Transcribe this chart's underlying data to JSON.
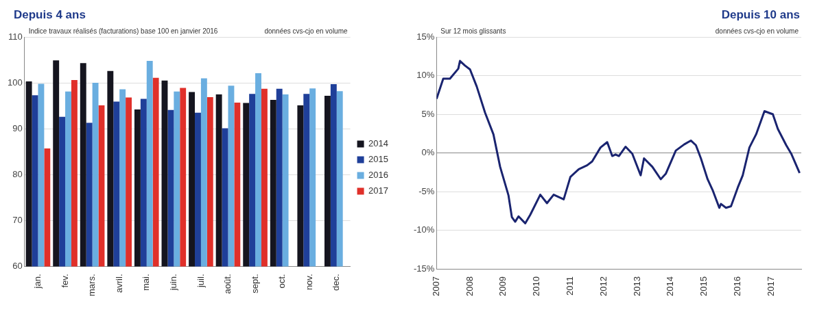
{
  "chart_data": [
    {
      "type": "bar",
      "title": "Depuis 4 ans",
      "annotations": [
        "Indice travaux réalisés (facturations) base 100 en janvier 2016",
        "données cvs-cjo en volume"
      ],
      "categories": [
        "jan.",
        "fev.",
        "mars.",
        "avril.",
        "mai.",
        "juin.",
        "juil.",
        "août.",
        "sept.",
        "oct.",
        "nov.",
        "dec."
      ],
      "series": [
        {
          "name": "2014",
          "color": "#15151f",
          "values": [
            100.3,
            104.9,
            104.3,
            102.6,
            94.2,
            100.5,
            98.0,
            97.5,
            95.6,
            96.3,
            95.1,
            97.2
          ]
        },
        {
          "name": "2015",
          "color": "#1f3f99",
          "values": [
            97.3,
            92.6,
            91.3,
            95.9,
            96.5,
            94.1,
            93.5,
            90.1,
            97.6,
            98.7,
            97.6,
            99.7
          ]
        },
        {
          "name": "2016",
          "color": "#6aaee0",
          "values": [
            99.8,
            98.1,
            100.0,
            98.6,
            104.8,
            98.1,
            101.0,
            99.4,
            102.1,
            97.5,
            98.8,
            98.2
          ]
        },
        {
          "name": "2017",
          "color": "#e0302a",
          "values": [
            85.7,
            100.6,
            95.1,
            96.8,
            101.1,
            98.9,
            96.9,
            95.7,
            98.7,
            null,
            null,
            null
          ]
        }
      ],
      "ylim": [
        60,
        110
      ],
      "yticks": [
        60,
        70,
        80,
        90,
        100,
        110
      ],
      "grid": "y",
      "legend": "right"
    },
    {
      "type": "line",
      "title": "Depuis 10 ans",
      "annotations": [
        "Sur 12 mois glissants",
        "données cvs-cjo en volume"
      ],
      "series": [
        {
          "color": "#1a2470",
          "x": [
            2007.0,
            2007.2,
            2007.4,
            2007.65,
            2007.7,
            2007.85,
            2008.0,
            2008.2,
            2008.45,
            2008.7,
            2008.9,
            2009.15,
            2009.25,
            2009.35,
            2009.45,
            2009.65,
            2009.8,
            2010.1,
            2010.3,
            2010.5,
            2010.8,
            2011.0,
            2011.25,
            2011.5,
            2011.65,
            2011.9,
            2012.1,
            2012.25,
            2012.35,
            2012.45,
            2012.65,
            2012.85,
            2013.1,
            2013.2,
            2013.45,
            2013.7,
            2013.85,
            2014.15,
            2014.4,
            2014.6,
            2014.75,
            2014.9,
            2015.1,
            2015.25,
            2015.45,
            2015.5,
            2015.65,
            2015.8,
            2016.0,
            2016.15,
            2016.35,
            2016.55,
            2016.8,
            2017.05,
            2017.2,
            2017.45,
            2017.6,
            2017.85
          ],
          "values": [
            7.0,
            9.6,
            9.6,
            10.9,
            11.9,
            11.3,
            10.8,
            8.6,
            5.2,
            2.4,
            -1.8,
            -5.5,
            -8.3,
            -8.9,
            -8.2,
            -9.1,
            -8.0,
            -5.4,
            -6.5,
            -5.4,
            -6.0,
            -3.1,
            -2.1,
            -1.6,
            -1.1,
            0.7,
            1.4,
            -0.4,
            -0.2,
            -0.4,
            0.8,
            -0.1,
            -2.9,
            -0.7,
            -1.8,
            -3.4,
            -2.7,
            0.3,
            1.1,
            1.6,
            1.0,
            -0.7,
            -3.4,
            -4.8,
            -7.1,
            -6.6,
            -7.1,
            -6.9,
            -4.5,
            -2.9,
            0.7,
            2.4,
            5.4,
            5.0,
            3.1,
            1.0,
            -0.1,
            -2.6
          ]
        }
      ],
      "xlim": [
        2007,
        2017.9
      ],
      "xticks": [
        2007,
        2008,
        2009,
        2010,
        2011,
        2012,
        2013,
        2014,
        2015,
        2016,
        2017
      ],
      "ylim": [
        -15,
        15
      ],
      "yticks": [
        {
          "value": -15,
          "label": "-15%"
        },
        {
          "value": -10,
          "label": "-10%"
        },
        {
          "value": -5,
          "label": "-5%"
        },
        {
          "value": 0,
          "label": "0%"
        },
        {
          "value": 5,
          "label": "5%"
        },
        {
          "value": 10,
          "label": "10%"
        },
        {
          "value": 15,
          "label": "15%"
        }
      ],
      "grid": "y"
    }
  ]
}
